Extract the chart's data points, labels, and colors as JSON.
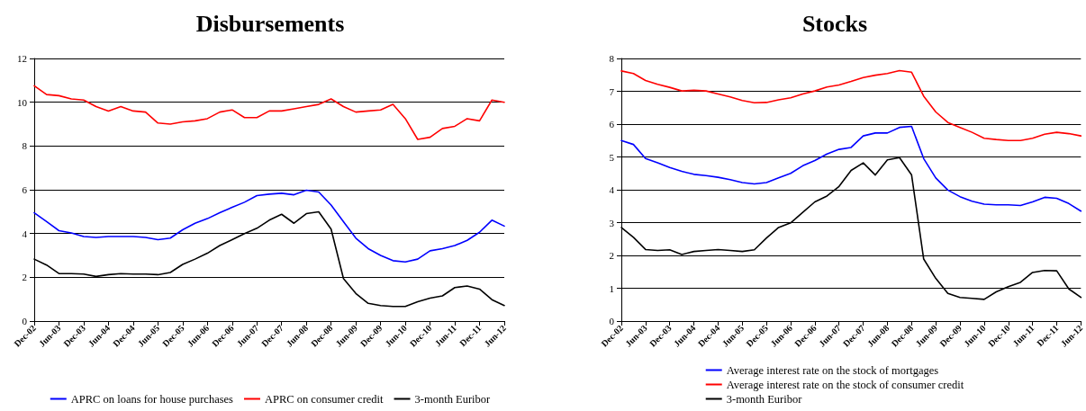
{
  "chart_data": [
    {
      "type": "line",
      "title": "Disbursements",
      "categories": [
        "Dec-02",
        null,
        "Jun-03",
        null,
        "Dec-03",
        null,
        "Jun-04",
        null,
        "Dec-04",
        null,
        "Jun-05",
        null,
        "Dec-05",
        null,
        "Jun-06",
        null,
        "Dec-06",
        null,
        "Jun-07",
        null,
        "Dec-07",
        null,
        "Jun-08",
        null,
        "Dec-08",
        null,
        "Jun-09",
        null,
        "Dec-09",
        null,
        "Jun-10",
        null,
        "Dec-10",
        null,
        "Jun-11",
        null,
        "Dec-11",
        null,
        "Jun-12"
      ],
      "ylim": [
        0,
        12
      ],
      "yticks": [
        0,
        2,
        4,
        6,
        8,
        10,
        12
      ],
      "grid": "y",
      "legend": "bottom",
      "marker": "none",
      "line_style": "solid",
      "series": [
        {
          "name": "APRC on loans for house purchases",
          "color": "#0000ff",
          "values": [
            4.95,
            4.55,
            4.13,
            4.03,
            3.86,
            3.82,
            3.86,
            3.86,
            3.86,
            3.82,
            3.72,
            3.79,
            4.17,
            4.47,
            4.68,
            4.95,
            5.2,
            5.43,
            5.73,
            5.8,
            5.84,
            5.77,
            5.98,
            5.9,
            5.3,
            4.54,
            3.79,
            3.31,
            3.0,
            2.76,
            2.7,
            2.83,
            3.21,
            3.31,
            3.45,
            3.69,
            4.06,
            4.61,
            4.34
          ]
        },
        {
          "name": "APRC on consumer credit",
          "color": "#ff0000",
          "values": [
            10.75,
            10.35,
            10.3,
            10.15,
            10.1,
            9.8,
            9.6,
            9.8,
            9.6,
            9.55,
            9.05,
            9.0,
            9.1,
            9.15,
            9.25,
            9.55,
            9.65,
            9.3,
            9.3,
            9.6,
            9.6,
            9.7,
            9.8,
            9.9,
            10.15,
            9.8,
            9.55,
            9.6,
            9.65,
            9.9,
            9.25,
            8.3,
            8.4,
            8.8,
            8.9,
            9.25,
            9.15,
            10.1,
            10.0
          ]
        },
        {
          "name": "3-month Euribor",
          "color": "#000000",
          "values": [
            2.83,
            2.56,
            2.17,
            2.17,
            2.15,
            2.04,
            2.12,
            2.17,
            2.15,
            2.15,
            2.12,
            2.22,
            2.59,
            2.83,
            3.1,
            3.45,
            3.72,
            4.0,
            4.24,
            4.61,
            4.88,
            4.47,
            4.91,
            4.99,
            4.2,
            1.94,
            1.26,
            0.81,
            0.71,
            0.67,
            0.67,
            0.88,
            1.05,
            1.15,
            1.53,
            1.6,
            1.46,
            0.98,
            0.71
          ]
        }
      ]
    },
    {
      "type": "line",
      "title": "Stocks",
      "categories": [
        "Dec-02",
        null,
        "Jun-03",
        null,
        "Dec-03",
        null,
        "Jun-04",
        null,
        "Dec-04",
        null,
        "Jun-05",
        null,
        "Dec-05",
        null,
        "Jun-06",
        null,
        "Dec-06",
        null,
        "Jun-07",
        null,
        "Dec-07",
        null,
        "Jun-08",
        null,
        "Dec-08",
        null,
        "Jun-09",
        null,
        "Dec-09",
        null,
        "Jun-10",
        null,
        "Dec-10",
        null,
        "Jun-11",
        null,
        "Dec-11",
        null,
        "Jun-12"
      ],
      "ylim": [
        0,
        8
      ],
      "yticks": [
        0,
        1,
        2,
        3,
        4,
        5,
        6,
        7,
        8
      ],
      "grid": "y",
      "legend": "bottom",
      "marker": "none",
      "line_style": "solid",
      "series": [
        {
          "name": "Average interest rate on the stock of mortgages",
          "color": "#0000ff",
          "values": [
            5.5,
            5.38,
            4.95,
            4.82,
            4.68,
            4.56,
            4.47,
            4.43,
            4.38,
            4.31,
            4.22,
            4.18,
            4.22,
            4.36,
            4.5,
            4.73,
            4.89,
            5.09,
            5.23,
            5.29,
            5.64,
            5.73,
            5.73,
            5.9,
            5.93,
            4.95,
            4.36,
            3.99,
            3.79,
            3.65,
            3.56,
            3.54,
            3.54,
            3.52,
            3.63,
            3.77,
            3.74,
            3.58,
            3.35
          ]
        },
        {
          "name": "Average interest rate on the stock of consumer credit",
          "color": "#ff0000",
          "values": [
            7.62,
            7.54,
            7.33,
            7.21,
            7.12,
            7.01,
            7.03,
            7.01,
            6.92,
            6.83,
            6.72,
            6.65,
            6.66,
            6.74,
            6.8,
            6.92,
            7.01,
            7.13,
            7.19,
            7.3,
            7.42,
            7.49,
            7.54,
            7.63,
            7.58,
            6.85,
            6.37,
            6.05,
            5.9,
            5.75,
            5.57,
            5.53,
            5.5,
            5.5,
            5.57,
            5.69,
            5.75,
            5.71,
            5.64
          ]
        },
        {
          "name": "3-month Euribor",
          "color": "#000000",
          "values": [
            2.85,
            2.55,
            2.18,
            2.15,
            2.17,
            2.03,
            2.12,
            2.15,
            2.18,
            2.15,
            2.12,
            2.17,
            2.53,
            2.85,
            2.99,
            3.31,
            3.63,
            3.81,
            4.1,
            4.59,
            4.82,
            4.45,
            4.91,
            4.98,
            4.45,
            1.89,
            1.3,
            0.84,
            0.72,
            0.69,
            0.66,
            0.89,
            1.05,
            1.18,
            1.48,
            1.54,
            1.53,
            0.98,
            0.72
          ]
        }
      ]
    }
  ]
}
